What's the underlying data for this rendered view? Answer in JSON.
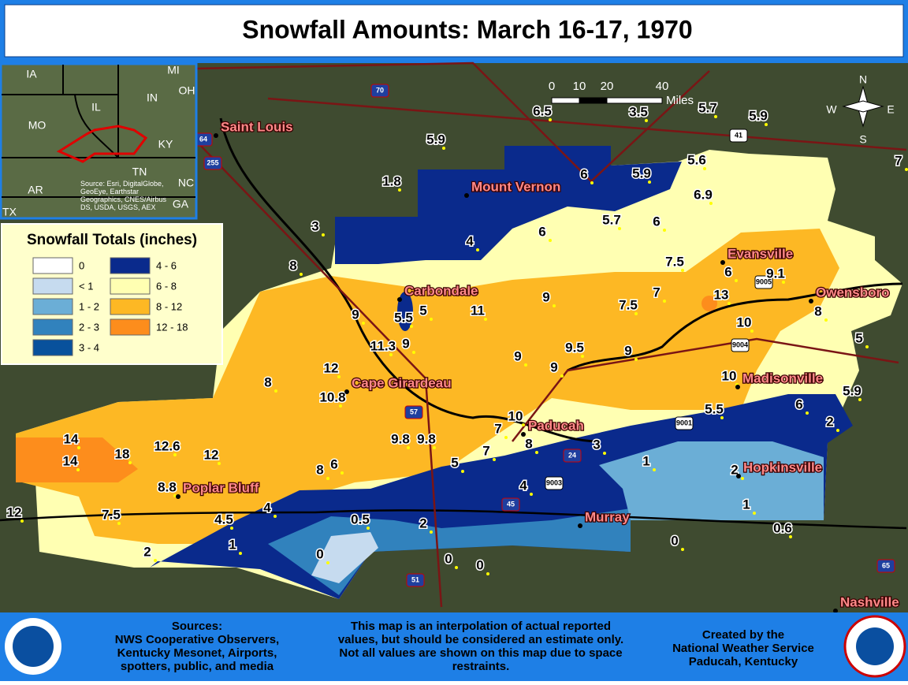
{
  "header": {
    "title": "Snowfall Amounts: March 16-17, 1970"
  },
  "cities": [
    "Saint Louis",
    "Mount Vernon",
    "Carbondale",
    "Cape Girardeau",
    "Paducah",
    "Evansville",
    "Owensboro",
    "Madisonville",
    "Hopkinsville",
    "Murray",
    "Poplar Bluff",
    "Nashville"
  ],
  "observations": [
    6.5,
    3.5,
    5.7,
    5.9,
    7,
    5.9,
    1.8,
    6,
    5.9,
    5.6,
    6.9,
    3,
    6,
    5.7,
    6,
    4,
    8,
    7.5,
    6,
    9.1,
    7,
    7.5,
    13,
    8,
    10,
    9,
    5.5,
    5,
    11,
    9,
    11.3,
    9,
    5,
    9,
    9.5,
    9,
    9,
    12,
    8,
    10,
    10.8,
    5.9,
    6,
    5.5,
    2,
    10,
    7,
    9.8,
    9.8,
    8,
    7,
    3,
    14,
    14,
    18,
    12.6,
    12,
    1,
    2,
    8,
    6,
    5,
    4,
    8.8,
    4,
    1,
    12,
    7.5,
    4.5,
    0.5,
    2,
    0,
    0.6,
    1,
    2,
    0,
    0,
    0
  ],
  "states": [
    "IA",
    "MI",
    "OH",
    "IL",
    "IN",
    "MO",
    "KY",
    "TN",
    "NC",
    "AR",
    "GA",
    "TX"
  ],
  "inset_credit": [
    "Source: Esri, DigitalGlobe,",
    "GeoEye, Earthstar",
    "Geographics, CNES/Airbus",
    "DS, USDA, USGS, AEX"
  ],
  "highways": [
    "70",
    "64",
    "255",
    "57",
    "24",
    "45",
    "51",
    "65",
    "41",
    "9001",
    "9003",
    "9004",
    "9005"
  ],
  "scale": {
    "ticks": [
      0,
      10,
      20,
      40
    ],
    "unit": "Miles"
  },
  "compass": {
    "n": "N",
    "s": "S",
    "e": "E",
    "w": "W"
  },
  "legend": {
    "title": "Snowfall Totals (inches)",
    "items": [
      {
        "label": "0",
        "color": "#ffffff"
      },
      {
        "label": "< 1",
        "color": "#c6dbef"
      },
      {
        "label": "1 - 2",
        "color": "#6baed6"
      },
      {
        "label": "2 - 3",
        "color": "#3182bd"
      },
      {
        "label": "3 - 4",
        "color": "#08519c"
      },
      {
        "label": "4 - 6",
        "color": "#0a2a8c"
      },
      {
        "label": "6 - 8",
        "color": "#ffffb2"
      },
      {
        "label": "8 - 12",
        "color": "#fdb824"
      },
      {
        "label": "12 - 18",
        "color": "#fd8d1c"
      }
    ]
  },
  "footer": {
    "sources": [
      "Sources:",
      "NWS Cooperative Observers,",
      "Kentucky Mesonet, Airports,",
      "spotters, public, and media"
    ],
    "disclaimer": [
      "This map is an interpolation of actual reported",
      "values, but should be considered an estimate only.",
      "Not all values are shown on this map due to space",
      "restraints."
    ],
    "credit": [
      "Created by the",
      "National Weather Service",
      "Paducah, Kentucky"
    ]
  }
}
